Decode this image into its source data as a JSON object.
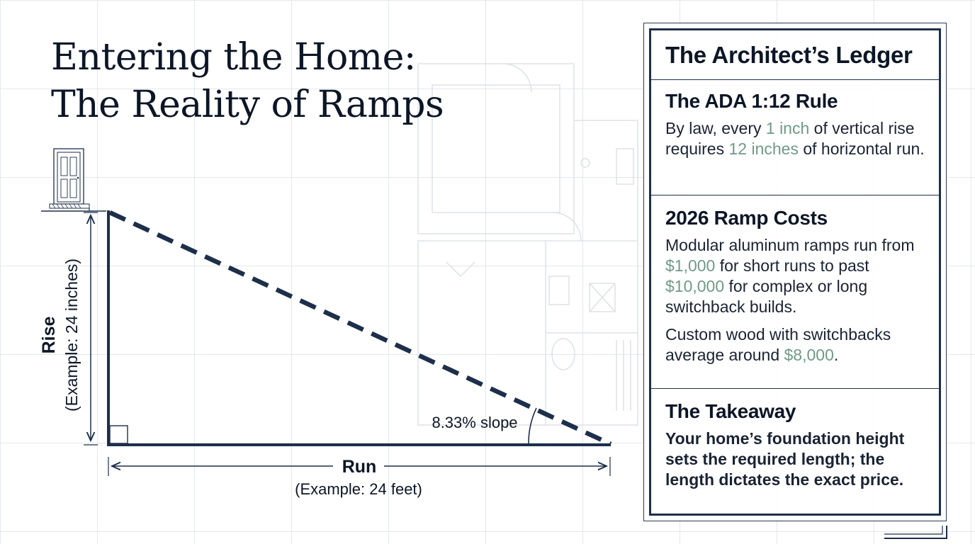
{
  "title": {
    "line1": "Entering the Home:",
    "line2": "The Reality of Ramps"
  },
  "diagram": {
    "rise_label": "Rise",
    "rise_example": "(Example: 24 inches)",
    "run_label": "Run",
    "run_example": "(Example: 24 feet)",
    "slope_label": "8.33% slope",
    "icons": [
      "door-icon",
      "right-angle-marker"
    ]
  },
  "ledger": {
    "heading": "The Architect’s Ledger",
    "rule": {
      "title": "The ADA 1:12 Rule",
      "p_before": "By law, every ",
      "p_hl1": "1 inch",
      "p_mid": " of vertical rise requires ",
      "p_hl2": "12 inches",
      "p_after": " of horizontal run."
    },
    "costs": {
      "title": "2026 Ramp Costs",
      "p1_before": "Modular aluminum ramps run from ",
      "p1_hl1": "$1,000",
      "p1_mid": " for short runs to past ",
      "p1_hl2": "$10,000",
      "p1_after": " for complex or long switchback builds.",
      "p2_before": "Custom wood with switchbacks average around ",
      "p2_hl": "$8,000",
      "p2_after": "."
    },
    "takeaway": {
      "title": "The Takeaway",
      "text": "Your home’s foundation height sets the required length; the length dictates the exact price."
    }
  },
  "colors": {
    "navy": "#1d2f4a",
    "accent_green": "#6f9a86",
    "takeaway_green": "#86a491",
    "grid": "#e3e7ec"
  }
}
